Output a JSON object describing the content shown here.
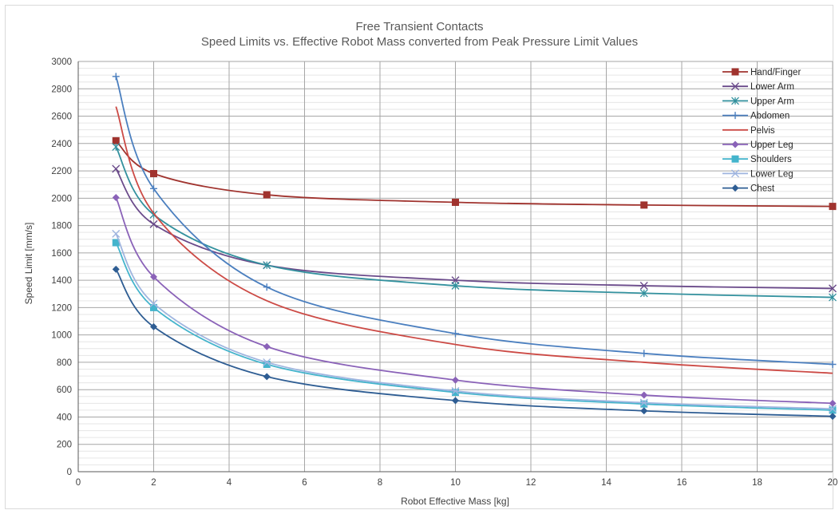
{
  "chart_data": {
    "type": "line",
    "title": "Free Transient Contacts",
    "subtitle": "Speed Limits vs. Effective Robot Mass converted from Peak Pressure Limit Values",
    "xlabel": "Robot Effective Mass [kg]",
    "ylabel": "Speed Limit [mm/s]",
    "xlim": [
      0,
      20
    ],
    "ylim": [
      0,
      3000
    ],
    "xticks": [
      0,
      2,
      4,
      6,
      8,
      10,
      12,
      14,
      16,
      18,
      20
    ],
    "yticks": [
      0,
      200,
      400,
      600,
      800,
      1000,
      1200,
      1400,
      1600,
      1800,
      2000,
      2200,
      2400,
      2600,
      2800,
      3000
    ],
    "grid": true,
    "legend_position": "top-right",
    "x": [
      1,
      2,
      5,
      10,
      15,
      20
    ],
    "series": [
      {
        "name": "Hand/Finger",
        "values": [
          2420,
          2180,
          2025,
          1970,
          1950,
          1940
        ],
        "color": "#a0332e",
        "marker": "square"
      },
      {
        "name": "Lower Arm",
        "values": [
          2215,
          1810,
          1510,
          1400,
          1360,
          1340
        ],
        "color": "#6a4a8a",
        "marker": "x"
      },
      {
        "name": "Upper Arm",
        "values": [
          2375,
          1880,
          1510,
          1360,
          1305,
          1275
        ],
        "color": "#33919e",
        "marker": "asterisk"
      },
      {
        "name": "Abdomen",
        "values": [
          2890,
          2070,
          1350,
          1010,
          865,
          785
        ],
        "color": "#4b7fbf",
        "marker": "plus"
      },
      {
        "name": "Pelvis",
        "values": [
          2670,
          1890,
          1250,
          930,
          800,
          720
        ],
        "color": "#cc4a45",
        "marker": "none"
      },
      {
        "name": "Upper Leg",
        "values": [
          2005,
          1425,
          915,
          670,
          560,
          500
        ],
        "color": "#8a62b8",
        "marker": "diamond"
      },
      {
        "name": "Shoulders",
        "values": [
          1675,
          1200,
          785,
          580,
          495,
          450
        ],
        "color": "#44b4cc",
        "marker": "square"
      },
      {
        "name": "Lower Leg",
        "values": [
          1740,
          1230,
          800,
          590,
          505,
          460
        ],
        "color": "#9fb5df",
        "marker": "x"
      },
      {
        "name": "Chest",
        "values": [
          1480,
          1060,
          695,
          520,
          445,
          405
        ],
        "color": "#2e5d93",
        "marker": "diamond"
      }
    ]
  }
}
